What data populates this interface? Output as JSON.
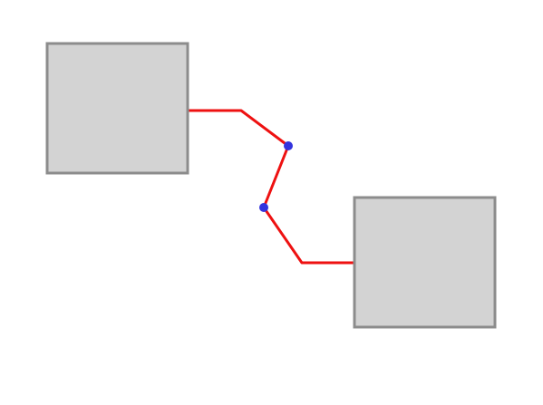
{
  "diagram": {
    "colors": {
      "background": "#ffffff",
      "node_fill": "#d3d3d3",
      "node_stroke": "#8c8c8c",
      "connector_stroke": "#ee1111",
      "handle_fill": "#3333dd"
    },
    "nodes": [
      {
        "id": "node-a",
        "label": ""
      },
      {
        "id": "node-b",
        "label": ""
      }
    ],
    "connector": {
      "from": "node-a",
      "to": "node-b",
      "bend_handles": 2
    }
  }
}
